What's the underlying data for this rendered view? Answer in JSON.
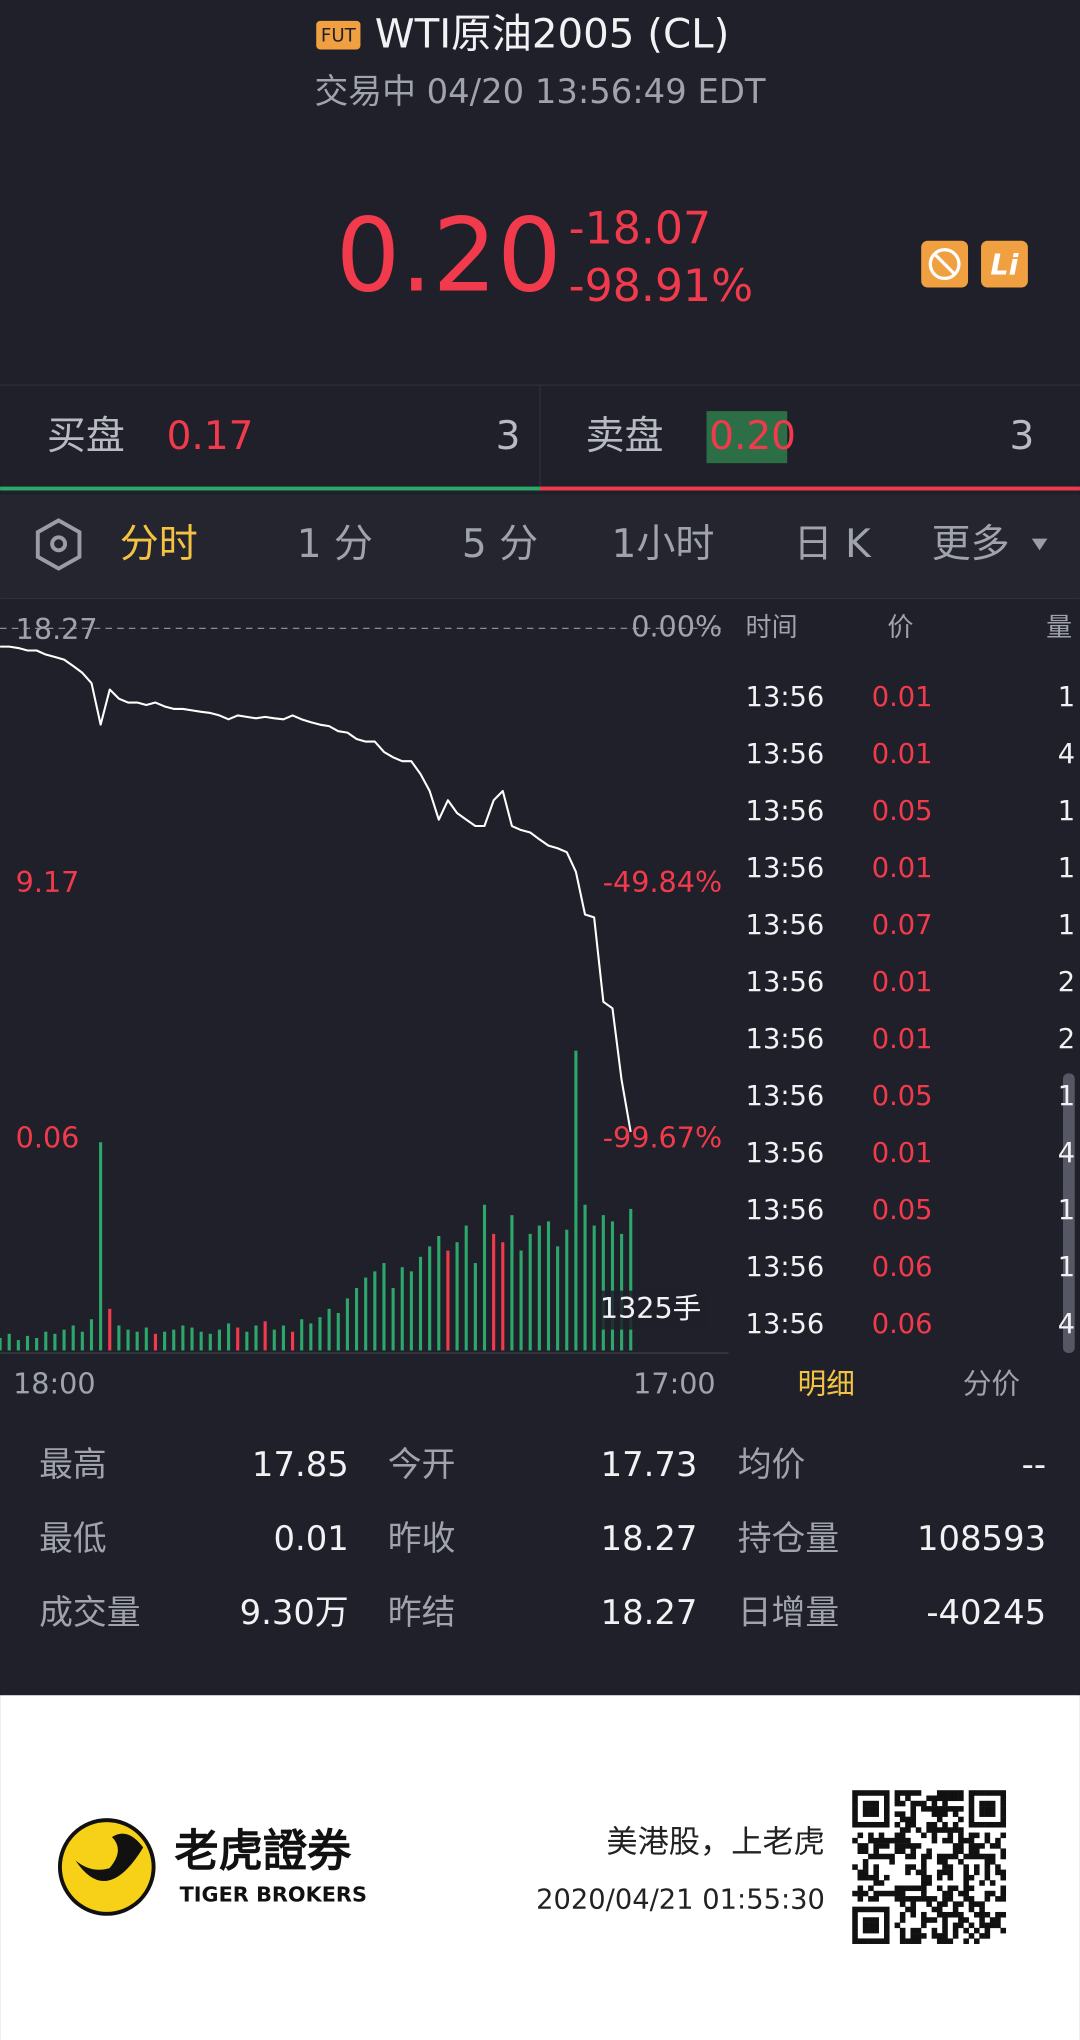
{
  "header": {
    "badge": "FUT",
    "title": "WTI原油2005 (CL)",
    "status": "交易中 04/20 13:56:49 EDT"
  },
  "quote": {
    "price": "0.20",
    "change": "-18.07",
    "change_pct": "-98.91%"
  },
  "bid": {
    "label": "买盘",
    "price": "0.17",
    "size": "3"
  },
  "ask": {
    "label": "卖盘",
    "price": "0.20",
    "size": "3"
  },
  "tabs": [
    "分时",
    "1 分",
    "5 分",
    "1小时",
    "日 K",
    "更多"
  ],
  "chart": {
    "type": "line",
    "color": "#ffffff",
    "values": [
      17.62,
      17.62,
      17.57,
      17.48,
      17.48,
      17.34,
      17.25,
      17.16,
      16.93,
      16.69,
      16.32,
      14.84,
      16.09,
      15.77,
      15.63,
      15.63,
      15.54,
      15.63,
      15.49,
      15.4,
      15.4,
      15.35,
      15.3,
      15.26,
      15.17,
      15.03,
      15.17,
      15.12,
      15.07,
      15.12,
      15.07,
      15.03,
      15.17,
      15.03,
      14.93,
      14.84,
      14.79,
      14.61,
      14.56,
      14.33,
      14.24,
      14.24,
      13.87,
      13.68,
      13.54,
      13.54,
      13.08,
      12.48,
      11.46,
      12.15,
      11.69,
      11.46,
      11.23,
      11.23,
      12.15,
      12.48,
      11.23,
      11.09,
      11.0,
      10.76,
      10.53,
      10.44,
      10.3,
      9.6,
      8.08,
      7.98,
      4.97,
      4.74,
      2.19,
      0.34,
      null,
      null,
      null,
      null,
      null,
      null,
      null,
      null,
      null,
      null
    ],
    "ylim": [
      0.06,
      18.27
    ],
    "yticks": [
      0.06,
      9.17,
      18.27
    ],
    "y2lim": [
      -99.67,
      0
    ],
    "y2ticks": [
      {
        "value": 0,
        "label": "0.00%"
      },
      {
        "value": -49.84,
        "label": "-49.84%"
      },
      {
        "value": -99.67,
        "label": "-99.67%"
      }
    ],
    "x_labels": [
      "18:00",
      "17:00"
    ],
    "volume": {
      "label": "1325手",
      "ylim": [
        0,
        1000
      ],
      "up_color": "#f23a4d",
      "down_color": "#2ca86a",
      "values": [
        60,
        80,
        50,
        70,
        60,
        90,
        80,
        100,
        120,
        90,
        150,
        1000,
        200,
        120,
        100,
        90,
        110,
        80,
        90,
        100,
        120,
        110,
        90,
        80,
        100,
        130,
        110,
        90,
        120,
        140,
        100,
        120,
        90,
        150,
        130,
        160,
        200,
        180,
        250,
        300,
        350,
        380,
        420,
        300,
        400,
        380,
        450,
        500,
        550,
        480,
        520,
        600,
        420,
        700,
        560,
        520,
        650,
        480,
        560,
        600,
        620,
        500,
        580,
        1440,
        700,
        600,
        650,
        620,
        560,
        680,
        null,
        null,
        null,
        null,
        null,
        null,
        null,
        null,
        null,
        null
      ]
    }
  },
  "trades": {
    "columns": [
      "时间",
      "价",
      "量"
    ],
    "rows": [
      [
        "13:56",
        "0.01",
        "1"
      ],
      [
        "13:56",
        "0.01",
        "4"
      ],
      [
        "13:56",
        "0.05",
        "1"
      ],
      [
        "13:56",
        "0.01",
        "1"
      ],
      [
        "13:56",
        "0.07",
        "1"
      ],
      [
        "13:56",
        "0.01",
        "2"
      ],
      [
        "13:56",
        "0.01",
        "2"
      ],
      [
        "13:56",
        "0.05",
        "1"
      ],
      [
        "13:56",
        "0.01",
        "4"
      ],
      [
        "13:56",
        "0.05",
        "1"
      ],
      [
        "13:56",
        "0.06",
        "1"
      ],
      [
        "13:56",
        "0.06",
        "4"
      ]
    ],
    "tabs": [
      "明细",
      "分价"
    ]
  },
  "stats": {
    "rows": [
      [
        {
          "label": "最高",
          "value": "17.85"
        },
        {
          "label": "今开",
          "value": "17.73"
        },
        {
          "label": "均价",
          "value": "--"
        }
      ],
      [
        {
          "label": "最低",
          "value": "0.01"
        },
        {
          "label": "昨收",
          "value": "18.27"
        },
        {
          "label": "持仓量",
          "value": "108593"
        }
      ],
      [
        {
          "label": "成交量",
          "value": "9.30万"
        },
        {
          "label": "昨结",
          "value": "18.27"
        },
        {
          "label": "日增量",
          "value": "-40245"
        }
      ]
    ]
  },
  "footer": {
    "brand": "老虎證券",
    "brand_en": "TIGER BROKERS",
    "slogan": "美港股，上老虎",
    "timestamp": "2020/04/21 01:55:30"
  }
}
